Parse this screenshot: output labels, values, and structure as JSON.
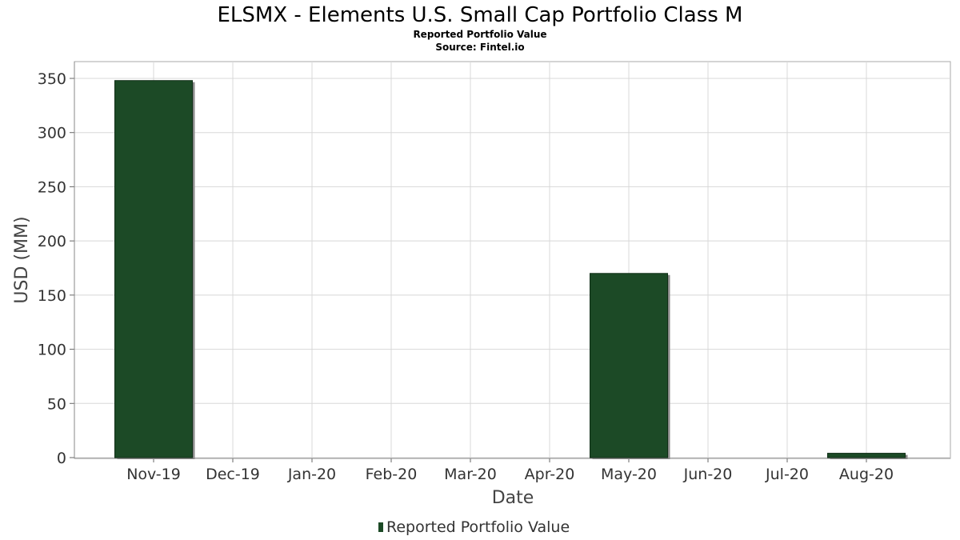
{
  "chart_data": {
    "type": "bar",
    "title": "ELSMX - Elements U.S. Small Cap Portfolio Class M",
    "subtitle": "Reported Portfolio Value",
    "source": "Source: Fintel.io",
    "xlabel": "Date",
    "ylabel": "USD (MM)",
    "categories": [
      "Nov-19",
      "Dec-19",
      "Jan-20",
      "Feb-20",
      "Mar-20",
      "Apr-20",
      "May-20",
      "Jun-20",
      "Jul-20",
      "Aug-20"
    ],
    "bars": [
      {
        "date": "Nov-19",
        "value": 348
      },
      {
        "date": "May-20",
        "value": 170
      },
      {
        "date": "Aug-20",
        "value": 4
      }
    ],
    "series": [
      {
        "name": "Reported Portfolio Value"
      }
    ],
    "ylim": [
      0,
      365
    ],
    "yticks": [
      0,
      50,
      100,
      150,
      200,
      250,
      300,
      350
    ],
    "grid": true,
    "legend_position": "bottom",
    "colors": {
      "bar": "#1c4a26",
      "bar_shadow": "#8a8a8a"
    }
  }
}
